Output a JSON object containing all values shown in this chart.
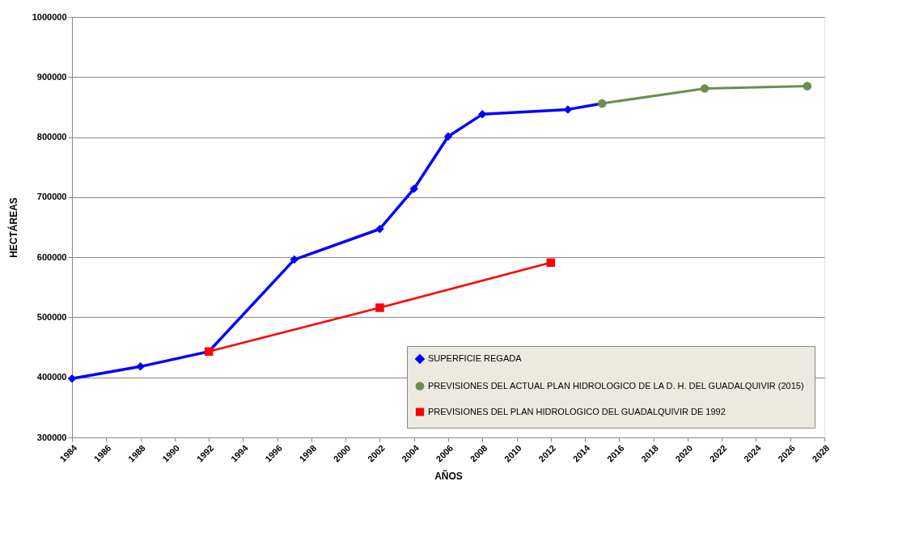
{
  "chart_data": {
    "type": "line",
    "xlabel": "AÑOS",
    "ylabel": "HECTÁREAS",
    "xlim": [
      1984,
      2028
    ],
    "xticks": [
      1984,
      1986,
      1988,
      1990,
      1992,
      1994,
      1996,
      1998,
      2000,
      2002,
      2004,
      2006,
      2008,
      2010,
      2012,
      2014,
      2016,
      2018,
      2020,
      2022,
      2024,
      2026,
      2028
    ],
    "ylim": [
      300000,
      1000000
    ],
    "yticks": [
      300000,
      400000,
      500000,
      600000,
      700000,
      800000,
      900000,
      1000000
    ],
    "grid": "y",
    "legend": "bottom right",
    "series": [
      {
        "name": "SUPERFICIE REGADA",
        "color": "#0000ff",
        "marker": "diamond",
        "x": [
          1984,
          1988,
          1992,
          1997,
          2002,
          2004,
          2006,
          2008,
          2013,
          2015
        ],
        "values": [
          398000,
          418000,
          443000,
          596000,
          647000,
          714000,
          801000,
          838000,
          846000,
          856000
        ]
      },
      {
        "name": "PREVISIONES DEL ACTUAL PLAN HIDROLOGICO DE LA D. H. DEL GUADALQUIVIR (2015)",
        "color": "#6b8e4e",
        "marker": "circle",
        "x": [
          2015,
          2021,
          2027
        ],
        "values": [
          856000,
          881000,
          885000
        ]
      },
      {
        "name": "PREVISIONES DEL PLAN HIDROLOGICO DEL GUADALQUIVIR  DE 1992",
        "color": "#ff0000",
        "marker": "square",
        "x": [
          1992,
          2002,
          2012
        ],
        "values": [
          443000,
          516000,
          591000
        ]
      }
    ]
  }
}
